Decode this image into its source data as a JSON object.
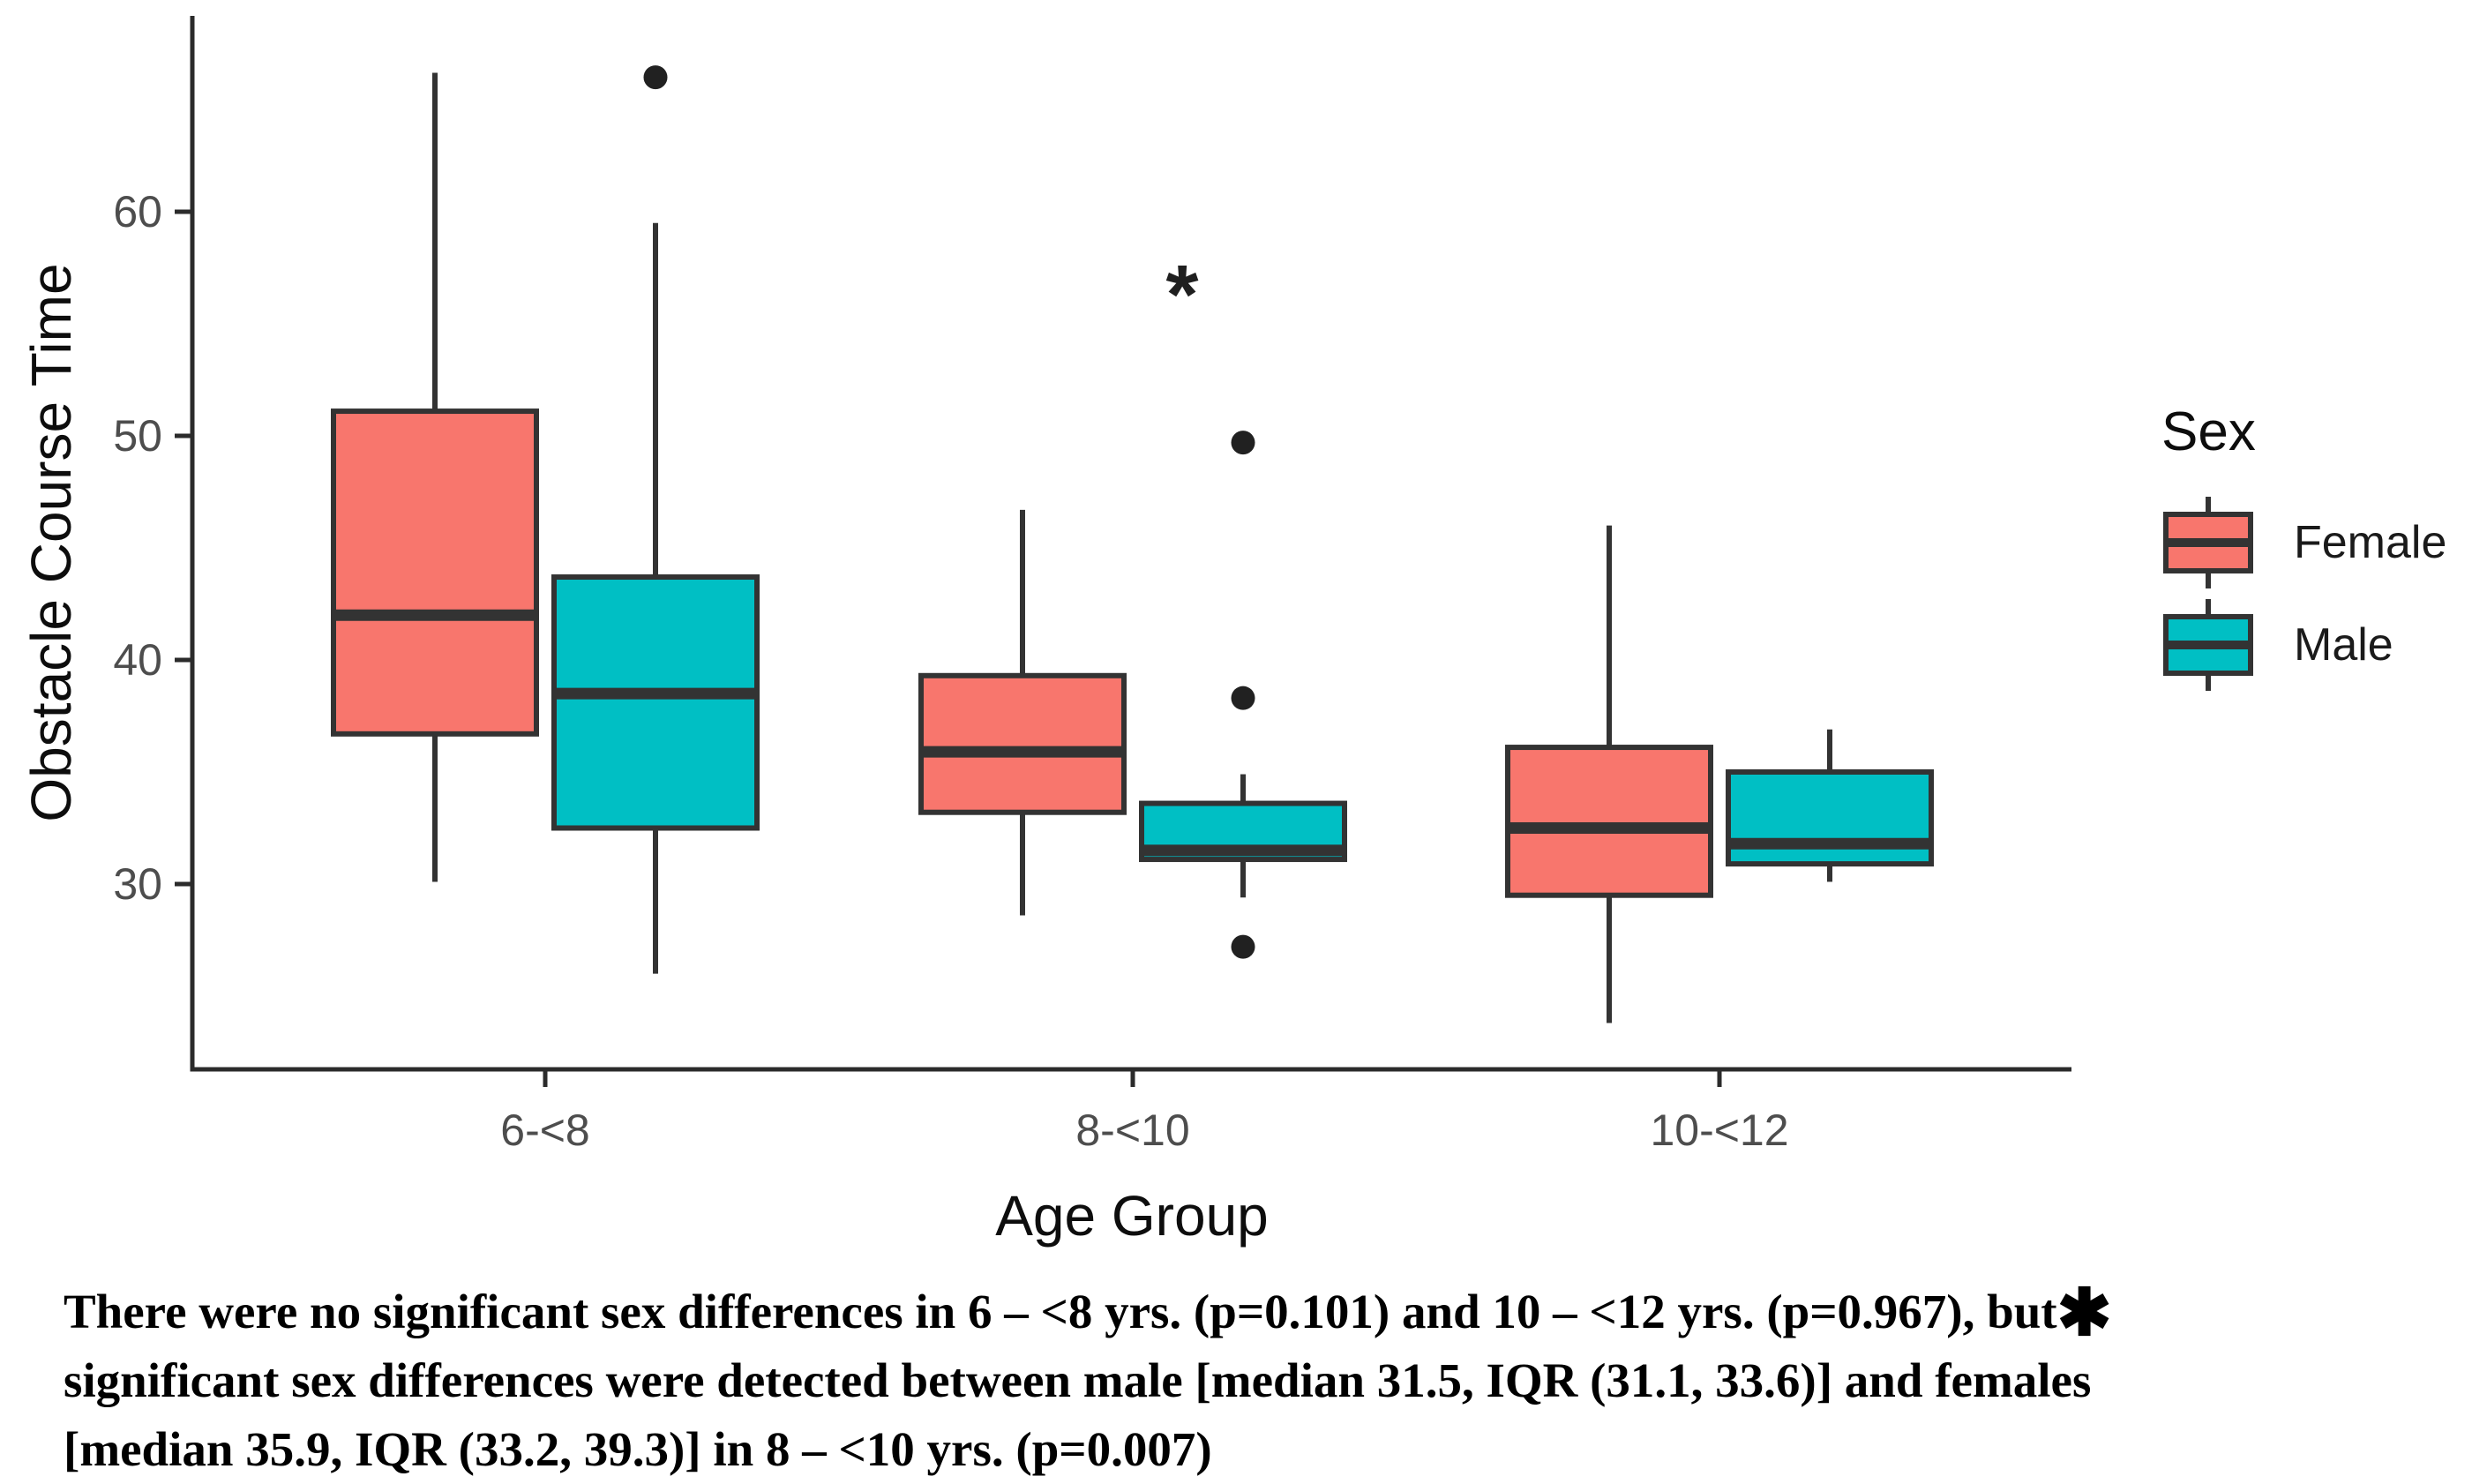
{
  "chart_data": {
    "type": "boxplot",
    "title": "",
    "xlabel": "Age Group",
    "ylabel": "Obstacle Course Time",
    "categories": [
      "6-<8",
      "8-<10",
      "10-<12"
    ],
    "y_ticks": [
      30,
      40,
      50,
      60
    ],
    "ylim": [
      21.8,
      68.7
    ],
    "grid": "off",
    "legend_position": "right",
    "series": [
      {
        "name": "Female",
        "color": "#F8766D",
        "boxes": [
          {
            "category": "6-<8",
            "whisker_low": 30.1,
            "q1": 36.7,
            "median": 42.0,
            "q3": 51.1,
            "whisker_high": 66.2,
            "outliers": []
          },
          {
            "category": "8-<10",
            "whisker_low": 28.6,
            "q1": 33.2,
            "median": 35.9,
            "q3": 39.3,
            "whisker_high": 46.7,
            "outliers": []
          },
          {
            "category": "10-<12",
            "whisker_low": 23.8,
            "q1": 29.5,
            "median": 32.5,
            "q3": 36.1,
            "whisker_high": 46.0,
            "outliers": []
          }
        ]
      },
      {
        "name": "Male",
        "color": "#00BFC4",
        "boxes": [
          {
            "category": "6-<8",
            "whisker_low": 26.0,
            "q1": 32.5,
            "median": 38.5,
            "q3": 43.7,
            "whisker_high": 59.5,
            "outliers": [
              66.0
            ]
          },
          {
            "category": "8-<10",
            "whisker_low": 29.4,
            "q1": 31.1,
            "median": 31.5,
            "q3": 33.6,
            "whisker_high": 34.9,
            "outliers": [
              49.7,
              38.3,
              27.2
            ]
          },
          {
            "category": "10-<12",
            "whisker_low": 30.1,
            "q1": 30.9,
            "median": 31.8,
            "q3": 35.0,
            "whisker_high": 36.9,
            "outliers": []
          }
        ]
      }
    ],
    "annotation": {
      "text": "*",
      "category": "8-<10",
      "value": 57.4
    }
  },
  "legend": {
    "title": "Sex",
    "entries": [
      {
        "label": "Female",
        "color": "#F8766D"
      },
      {
        "label": "Male",
        "color": "#00BFC4"
      }
    ]
  },
  "caption": {
    "line1": "There were no significant sex differences in 6 – <8 yrs. (p=0.101) and 10 – <12 yrs. (p=0.967), but",
    "asterisk": "✱",
    "line2": "significant sex differences were detected between male [median 31.5, IQR (31.1, 33.6)] and females",
    "line3": "[median 35.9, IQR (33.2, 39.3)] in 8 – <10 yrs. (p=0.007)"
  },
  "colors": {
    "female_fill": "#F8766D",
    "male_fill": "#00BFC4",
    "box_stroke": "#333333",
    "axis_line": "#2b2b2b",
    "tick_label": "#4D4D4D",
    "axis_title": "#0d0d0d",
    "outlier_dot": "#212121"
  }
}
